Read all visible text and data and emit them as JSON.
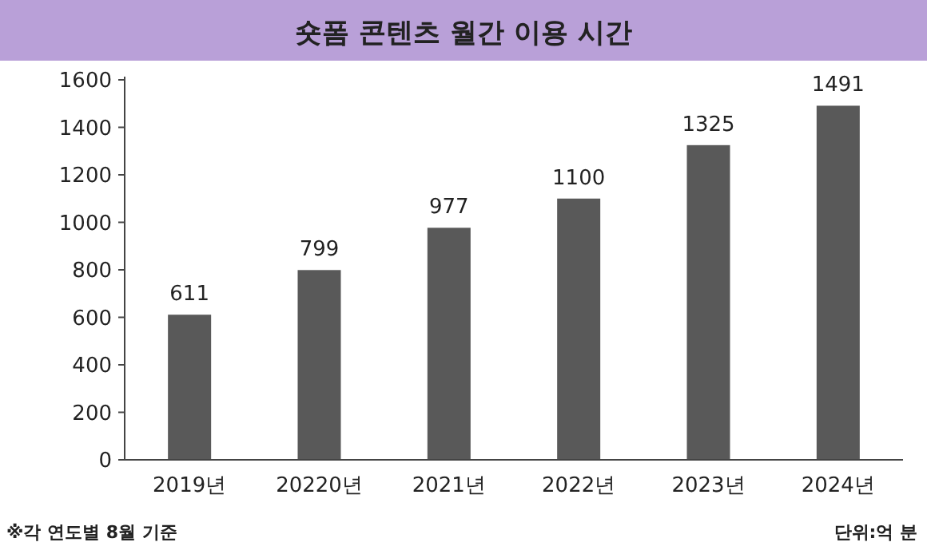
{
  "chart_data": {
    "type": "bar",
    "title": "숏폼 콘텐츠 월간 이용 시간",
    "categories": [
      "2019년",
      "20220년",
      "2021년",
      "2022년",
      "2023년",
      "2024년"
    ],
    "values": [
      611,
      799,
      977,
      1100,
      1325,
      1491
    ],
    "color": "#595959",
    "ylim": [
      0,
      1600
    ],
    "yticks": [
      0,
      200,
      400,
      600,
      800,
      1000,
      1200,
      1400,
      1600
    ],
    "data_labels": true,
    "annotations": [
      "※각 연도별 8월 기준",
      "단위:억 분"
    ]
  }
}
